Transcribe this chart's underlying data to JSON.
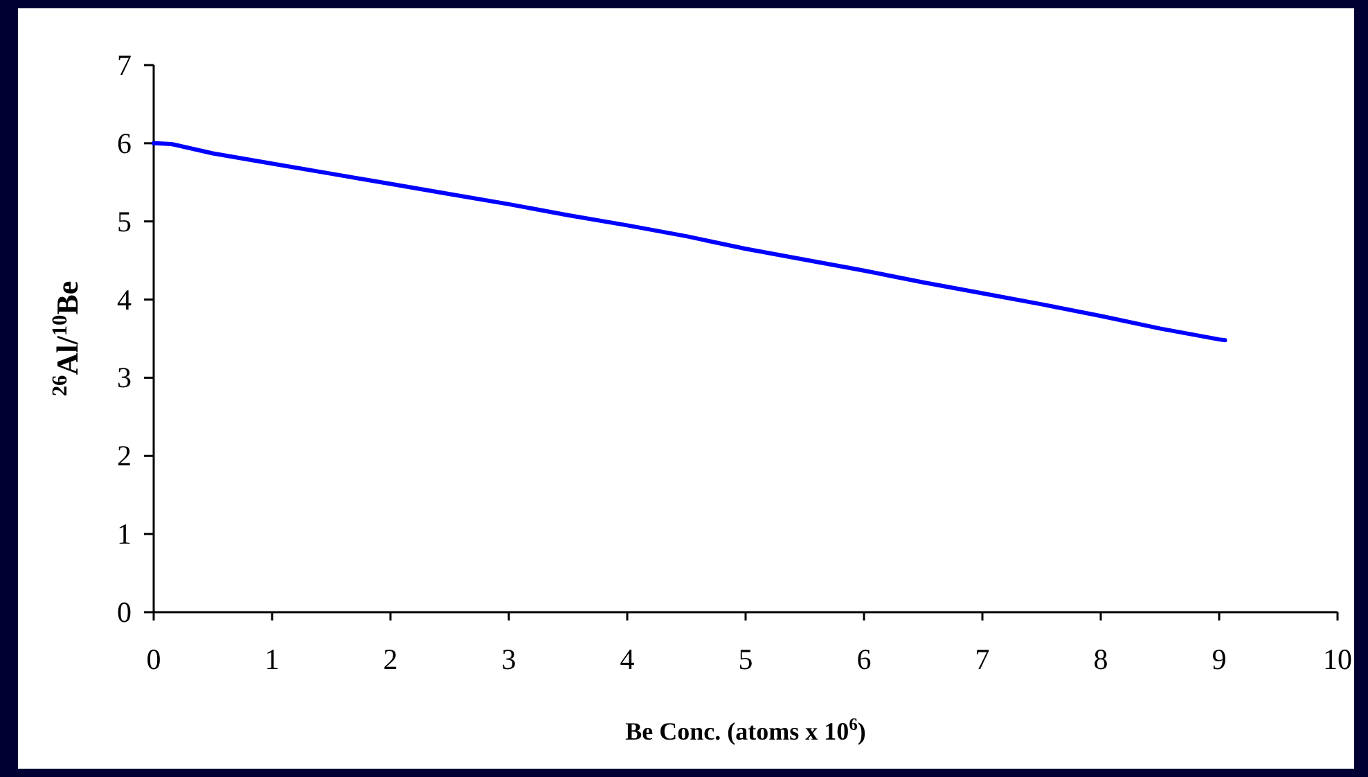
{
  "chart_data": {
    "type": "line",
    "xlabel": "Be Conc. (atoms x 10$^{6}$)",
    "ylabel": "$^{26}$Al/$^{10}$Be",
    "xlim": [
      0,
      10
    ],
    "xticks": [
      0,
      1,
      2,
      3,
      4,
      5,
      6,
      7,
      8,
      9,
      10
    ],
    "ylim": [
      0,
      7
    ],
    "yticks": [
      0,
      1,
      2,
      3,
      4,
      5,
      6,
      7
    ],
    "grid": false,
    "marker": "none",
    "line_style": "solid",
    "series": [
      {
        "color": "#0000ff",
        "x": [
          0,
          0.15,
          0.5,
          1,
          1.5,
          2,
          2.5,
          3,
          3.5,
          4,
          4.5,
          5,
          5.5,
          6,
          6.5,
          7,
          7.5,
          8,
          8.5,
          9,
          9.05
        ],
        "values": [
          6.0,
          5.99,
          5.87,
          5.74,
          5.61,
          5.48,
          5.35,
          5.22,
          5.08,
          4.95,
          4.81,
          4.65,
          4.51,
          4.37,
          4.22,
          4.08,
          3.94,
          3.79,
          3.63,
          3.49,
          3.48
        ]
      }
    ]
  }
}
